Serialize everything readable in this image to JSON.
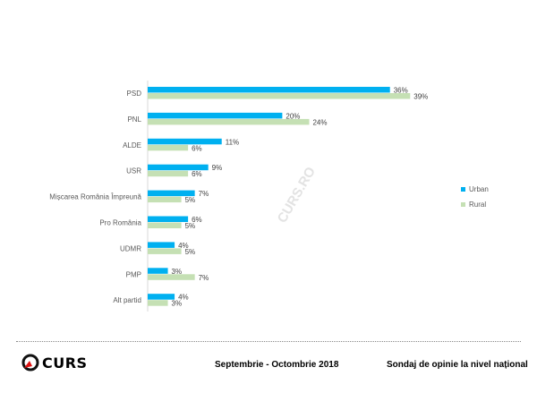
{
  "chart_data": {
    "type": "bar",
    "orientation": "horizontal",
    "categories": [
      "PSD",
      "PNL",
      "ALDE",
      "USR",
      "Mișcarea România Împreună",
      "Pro România",
      "UDMR",
      "PMP",
      "Alt partid"
    ],
    "series": [
      {
        "name": "Urban",
        "color": "#00B0F0",
        "values": [
          36,
          20,
          11,
          9,
          7,
          6,
          4,
          3,
          4
        ],
        "labels": [
          "36%",
          "20%",
          "11%",
          "9%",
          "7%",
          "6%",
          "4%",
          "3%",
          "4%"
        ]
      },
      {
        "name": "Rural",
        "color": "#C5E0B4",
        "values": [
          39,
          24,
          6,
          6,
          5,
          5,
          5,
          7,
          3
        ],
        "labels": [
          "39%",
          "24%",
          "6%",
          "6%",
          "5%",
          "5%",
          "5%",
          "7%",
          "3%"
        ]
      }
    ],
    "xlim": [
      0,
      40
    ],
    "legend": "right",
    "watermark": "CURS.RO"
  },
  "footer": {
    "logo": "CURS",
    "period": "Septembrie - Octombrie 2018",
    "subtitle": "Sondaj de opinie la nivel național"
  }
}
